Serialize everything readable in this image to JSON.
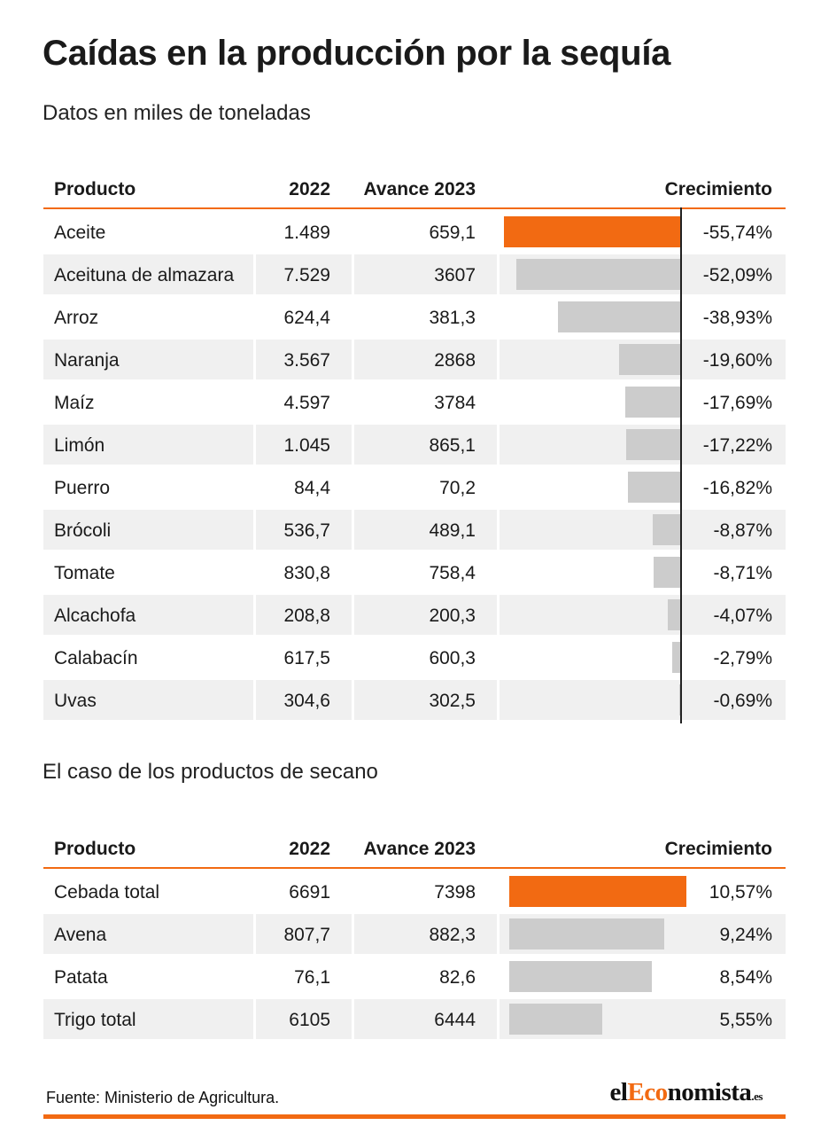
{
  "title": "Caídas en la producción por la sequía",
  "subtitle": "Datos en miles de toneladas",
  "section2_title": "El caso de los productos de secano",
  "source": "Fuente: Ministerio de Agricultura.",
  "logo": {
    "prefix": "el",
    "accent": "Eco",
    "rest": "nomista",
    "suffix": ".es"
  },
  "colors": {
    "accent": "#f26a12",
    "bar_default": "#cccccc",
    "row_shade": "#f0f0f0"
  },
  "headers": {
    "product": "Producto",
    "y2022": "2022",
    "y2023": "Avance 2023",
    "growth": "Crecimiento"
  },
  "chart_data": [
    {
      "type": "table",
      "columns": [
        "Producto",
        "2022",
        "Avance 2023",
        "Crecimiento"
      ],
      "rows": [
        {
          "product": "Aceite",
          "y2022": "1.489",
          "y2023": "659,1",
          "growth_label": "-55,74%",
          "growth": -55.74
        },
        {
          "product": "Aceituna de almazara",
          "y2022": "7.529",
          "y2023": "3607",
          "growth_label": "-52,09%",
          "growth": -52.09
        },
        {
          "product": "Arroz",
          "y2022": "624,4",
          "y2023": "381,3",
          "growth_label": "-38,93%",
          "growth": -38.93
        },
        {
          "product": "Naranja",
          "y2022": "3.567",
          "y2023": "2868",
          "growth_label": "-19,60%",
          "growth": -19.6
        },
        {
          "product": "Maíz",
          "y2022": "4.597",
          "y2023": "3784",
          "growth_label": "-17,69%",
          "growth": -17.69
        },
        {
          "product": "Limón",
          "y2022": "1.045",
          "y2023": "865,1",
          "growth_label": "-17,22%",
          "growth": -17.22
        },
        {
          "product": "Puerro",
          "y2022": "84,4",
          "y2023": "70,2",
          "growth_label": "-16,82%",
          "growth": -16.82
        },
        {
          "product": "Brócoli",
          "y2022": "536,7",
          "y2023": "489,1",
          "growth_label": "-8,87%",
          "growth": -8.87
        },
        {
          "product": "Tomate",
          "y2022": "830,8",
          "y2023": "758,4",
          "growth_label": "-8,71%",
          "growth": -8.71
        },
        {
          "product": "Alcachofa",
          "y2022": "208,8",
          "y2023": "200,3",
          "growth_label": "-4,07%",
          "growth": -4.07
        },
        {
          "product": "Calabacín",
          "y2022": "617,5",
          "y2023": "600,3",
          "growth_label": "-2,79%",
          "growth": -2.79
        },
        {
          "product": "Uvas",
          "y2022": "304,6",
          "y2023": "302,5",
          "growth_label": "-0,69%",
          "growth": -0.69
        }
      ]
    },
    {
      "type": "table",
      "columns": [
        "Producto",
        "2022",
        "Avance 2023",
        "Crecimiento"
      ],
      "rows": [
        {
          "product": "Cebada total",
          "y2022": "6691",
          "y2023": "7398",
          "growth_label": "10,57%",
          "growth": 10.57
        },
        {
          "product": "Avena",
          "y2022": "807,7",
          "y2023": "882,3",
          "growth_label": "9,24%",
          "growth": 9.24
        },
        {
          "product": "Patata",
          "y2022": "76,1",
          "y2023": "82,6",
          "growth_label": "8,54%",
          "growth": 8.54
        },
        {
          "product": "Trigo total",
          "y2022": "6105",
          "y2023": "6444",
          "growth_label": "5,55%",
          "growth": 5.55
        }
      ]
    }
  ]
}
